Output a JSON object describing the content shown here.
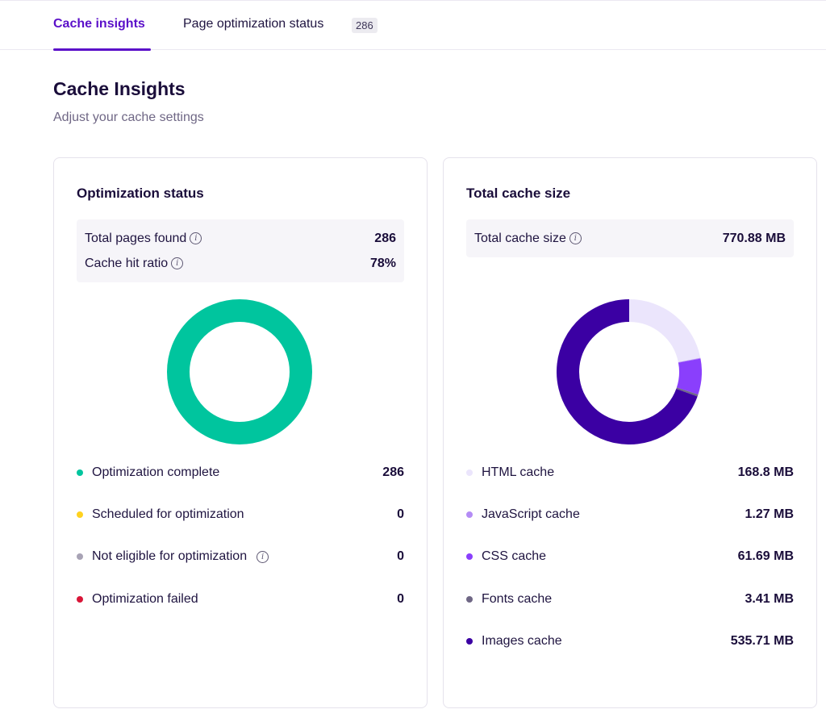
{
  "tabs": [
    {
      "label": "Cache insights",
      "active": true
    },
    {
      "label": "Page optimization status",
      "badge": "286",
      "active": false
    }
  ],
  "page": {
    "title": "Cache Insights",
    "subtitle": "Adjust your cache settings"
  },
  "optimization": {
    "title": "Optimization status",
    "summary": [
      {
        "label": "Total pages found",
        "value": "286"
      },
      {
        "label": "Cache hit ratio",
        "value": "78%"
      }
    ],
    "legend": [
      {
        "label": "Optimization complete",
        "value": "286",
        "color": "#00c59e"
      },
      {
        "label": "Scheduled for optimization",
        "value": "0",
        "color": "#ffd21f"
      },
      {
        "label": "Not eligible for optimization",
        "value": "0",
        "color": "#a8a3b5",
        "info": true
      },
      {
        "label": "Optimization failed",
        "value": "0",
        "color": "#d91638"
      }
    ]
  },
  "cache_size": {
    "title": "Total cache size",
    "summary": [
      {
        "label": "Total cache size",
        "value": "770.88 MB"
      }
    ],
    "legend": [
      {
        "label": "HTML cache",
        "value": "168.8 MB",
        "color": "#ebe5fc"
      },
      {
        "label": "JavaScript cache",
        "value": "1.27 MB",
        "color": "#b48cf5"
      },
      {
        "label": "CSS cache",
        "value": "61.69 MB",
        "color": "#8a3ffc"
      },
      {
        "label": "Fonts cache",
        "value": "3.41 MB",
        "color": "#6f6785"
      },
      {
        "label": "Images cache",
        "value": "535.71 MB",
        "color": "#3b00a3"
      }
    ]
  },
  "chart_data": [
    {
      "type": "pie",
      "categories": [
        "Optimization complete",
        "Scheduled for optimization",
        "Not eligible for optimization",
        "Optimization failed"
      ],
      "values": [
        286,
        0,
        0,
        0
      ],
      "colors": [
        "#00c59e",
        "#ffd21f",
        "#a8a3b5",
        "#d91638"
      ]
    },
    {
      "type": "pie",
      "categories": [
        "HTML cache",
        "JavaScript cache",
        "CSS cache",
        "Fonts cache",
        "Images cache"
      ],
      "values": [
        168.8,
        1.27,
        61.69,
        3.41,
        535.71
      ],
      "colors": [
        "#ebe5fc",
        "#b48cf5",
        "#8a3ffc",
        "#6f6785",
        "#3b00a3"
      ]
    }
  ]
}
